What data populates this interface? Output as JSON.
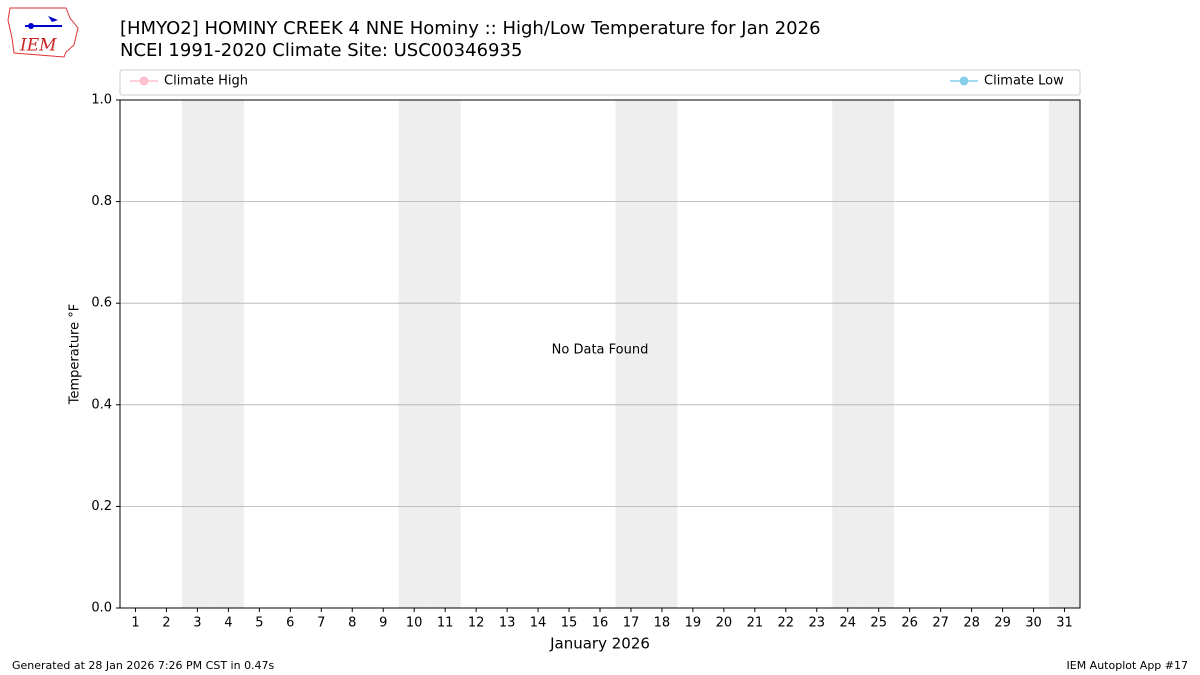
{
  "logo_text": "IEM",
  "chart_data": {
    "type": "line",
    "title": "[HMYO2] HOMINY CREEK 4 NNE Hominy :: High/Low Temperature for Jan 2026",
    "subtitle": "NCEI 1991-2020 Climate Site: USC00346935",
    "xlabel": "January 2026",
    "ylabel": "Temperature °F",
    "annotation": "No Data Found",
    "x": [],
    "series": [
      {
        "name": "Climate High",
        "color": "#ffc0cb",
        "values": []
      },
      {
        "name": "Climate Low",
        "color": "#87ceeb",
        "values": []
      }
    ],
    "shaded_days": [
      3,
      4,
      10,
      11,
      17,
      18,
      24,
      25,
      31
    ],
    "shade_color": "#eeeeee",
    "xlim": [
      0.5,
      31.5
    ],
    "xticks": [
      1,
      2,
      3,
      4,
      5,
      6,
      7,
      8,
      9,
      10,
      11,
      12,
      13,
      14,
      15,
      16,
      17,
      18,
      19,
      20,
      21,
      22,
      23,
      24,
      25,
      26,
      27,
      28,
      29,
      30,
      31
    ],
    "ylim": [
      0,
      1
    ],
    "yticks": [
      {
        "value": 0,
        "label": "0.0"
      },
      0.2,
      0.4,
      0.6,
      0.8,
      {
        "value": 1,
        "label": "1.0"
      }
    ],
    "grid": true,
    "footer_left": "Generated at 28 Jan 2026 7:26 PM CST in 0.47s",
    "footer_right": "IEM Autoplot App #17"
  }
}
